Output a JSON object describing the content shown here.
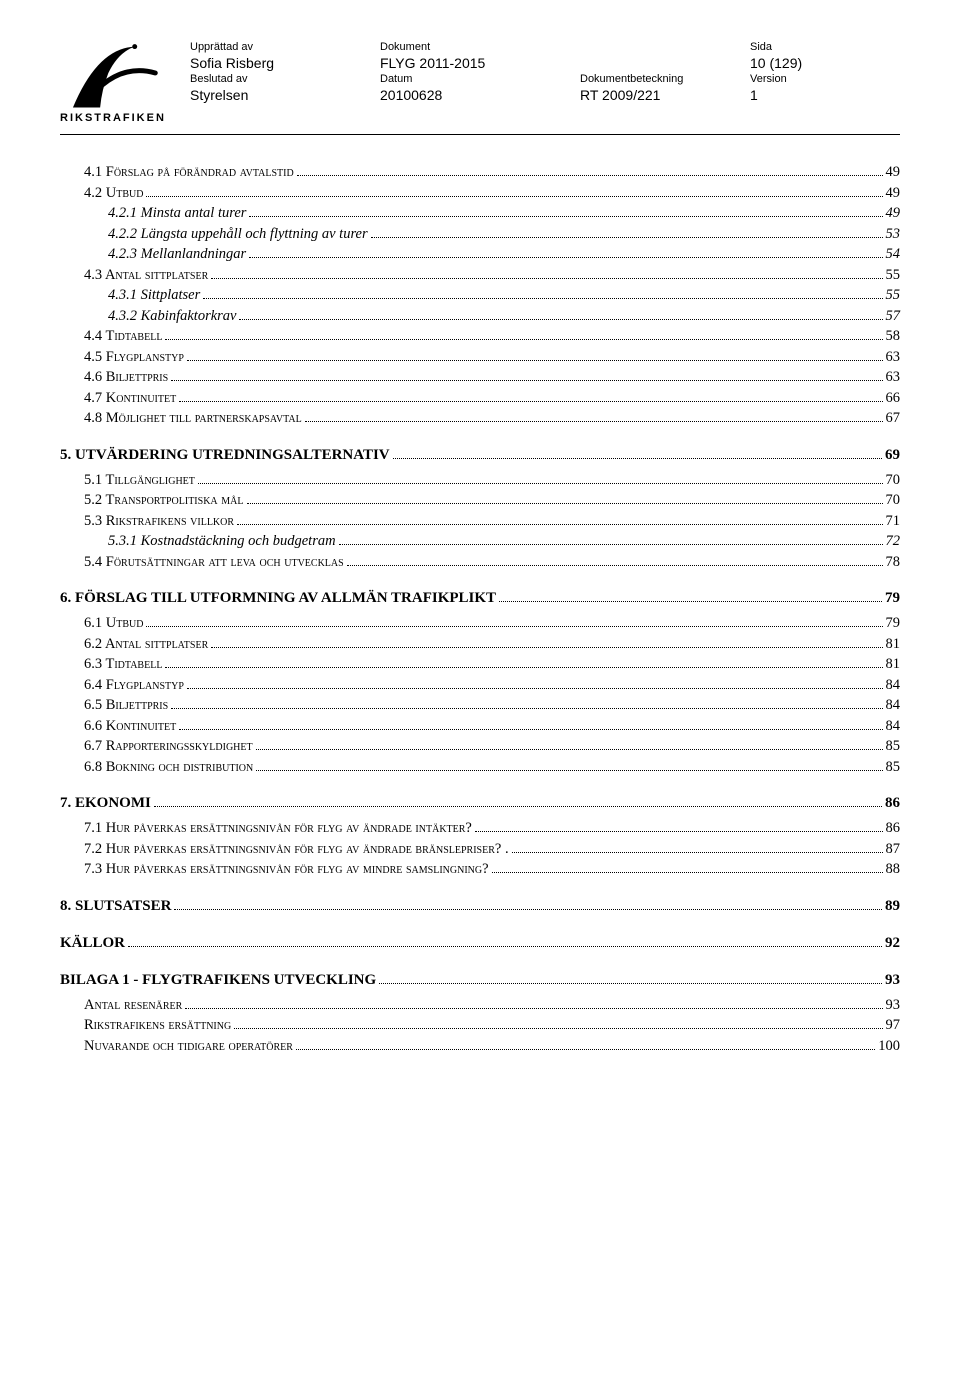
{
  "header": {
    "labels": {
      "upprattad": "Upprättad av",
      "dokument": "Dokument",
      "sida": "Sida",
      "beslutad": "Beslutad av",
      "datum": "Datum",
      "dokbet": "Dokumentbeteckning",
      "version": "Version"
    },
    "values": {
      "upprattad": "Sofia Risberg",
      "dokument": "FLYG 2011-2015",
      "sida": "10 (129)",
      "beslutad": "Styrelsen",
      "datum": "20100628",
      "dokbet": "RT 2009/221",
      "version": "1"
    },
    "logo_text": "RIKSTRAFIKEN",
    "logo_colors": {
      "stroke": "#000000",
      "fill": "#000000"
    }
  },
  "toc": [
    {
      "lvl": 2,
      "txt": "4.1 Förslag på förändrad avtalstid",
      "pg": "49"
    },
    {
      "lvl": 2,
      "txt": "4.2 Utbud",
      "pg": "49"
    },
    {
      "lvl": 3,
      "txt": "4.2.1 Minsta antal turer",
      "pg": "49"
    },
    {
      "lvl": 3,
      "txt": "4.2.2 Längsta uppehåll och flyttning av turer",
      "pg": "53"
    },
    {
      "lvl": 3,
      "txt": "4.2.3 Mellanlandningar",
      "pg": "54"
    },
    {
      "lvl": 2,
      "txt": "4.3 Antal sittplatser",
      "pg": "55"
    },
    {
      "lvl": 3,
      "txt": "4.3.1 Sittplatser",
      "pg": "55"
    },
    {
      "lvl": 3,
      "txt": "4.3.2 Kabinfaktorkrav",
      "pg": "57"
    },
    {
      "lvl": 2,
      "txt": "4.4 Tidtabell",
      "pg": "58"
    },
    {
      "lvl": 2,
      "txt": "4.5 Flygplanstyp",
      "pg": "63"
    },
    {
      "lvl": 2,
      "txt": "4.6 Biljettpris",
      "pg": "63"
    },
    {
      "lvl": 2,
      "txt": "4.7 Kontinuitet",
      "pg": "66"
    },
    {
      "lvl": 2,
      "txt": "4.8 Möjlighet till partnerskapsavtal",
      "pg": "67"
    },
    {
      "lvl": 1,
      "txt": "5. UTVÄRDERING UTREDNINGSALTERNATIV",
      "pg": "69"
    },
    {
      "lvl": 2,
      "txt": "5.1 Tillgänglighet",
      "pg": "70"
    },
    {
      "lvl": 2,
      "txt": "5.2 Transportpolitiska mål",
      "pg": "70"
    },
    {
      "lvl": 2,
      "txt": "5.3 Rikstrafikens villkor",
      "pg": "71"
    },
    {
      "lvl": 3,
      "txt": "5.3.1 Kostnadstäckning och budgetram",
      "pg": "72"
    },
    {
      "lvl": 2,
      "txt": "5.4 Förutsättningar att leva och utvecklas",
      "pg": "78"
    },
    {
      "lvl": 1,
      "txt": "6. FÖRSLAG TILL UTFORMNING AV ALLMÄN TRAFIKPLIKT",
      "pg": "79"
    },
    {
      "lvl": 2,
      "txt": "6.1 Utbud",
      "pg": "79"
    },
    {
      "lvl": 2,
      "txt": "6.2 Antal sittplatser",
      "pg": "81"
    },
    {
      "lvl": 2,
      "txt": "6.3 Tidtabell",
      "pg": "81"
    },
    {
      "lvl": 2,
      "txt": "6.4 Flygplanstyp",
      "pg": "84"
    },
    {
      "lvl": 2,
      "txt": "6.5 Biljettpris",
      "pg": "84"
    },
    {
      "lvl": 2,
      "txt": "6.6 Kontinuitet",
      "pg": "84"
    },
    {
      "lvl": 2,
      "txt": "6.7 Rapporteringsskyldighet",
      "pg": "85"
    },
    {
      "lvl": 2,
      "txt": "6.8 Bokning och distribution",
      "pg": "85"
    },
    {
      "lvl": 1,
      "txt": "7. EKONOMI",
      "pg": "86"
    },
    {
      "lvl": 2,
      "txt": "7.1 Hur påverkas ersättningsnivån för flyg av ändrade intäkter?",
      "pg": "86"
    },
    {
      "lvl": 2,
      "txt": "7.2 Hur påverkas ersättningsnivån för flyg av ändrade bränslepriser? .",
      "pg": "87"
    },
    {
      "lvl": 2,
      "txt": "7.3 Hur påverkas ersättningsnivån för flyg av mindre samslingning? ",
      "pg": "88"
    },
    {
      "lvl": 1,
      "txt": "8. SLUTSATSER",
      "pg": "89"
    },
    {
      "lvl": 1,
      "txt": "KÄLLOR",
      "pg": "92"
    },
    {
      "lvl": 1,
      "txt": "BILAGA 1 -  FLYGTRAFIKENS UTVECKLING",
      "pg": "93"
    },
    {
      "lvl": 2,
      "txt": "Antal resenärer",
      "pg": "93"
    },
    {
      "lvl": 2,
      "txt": "Rikstrafikens ersättning",
      "pg": "97"
    },
    {
      "lvl": 2,
      "txt": "Nuvarande och tidigare operatörer",
      "pg": "100"
    }
  ]
}
